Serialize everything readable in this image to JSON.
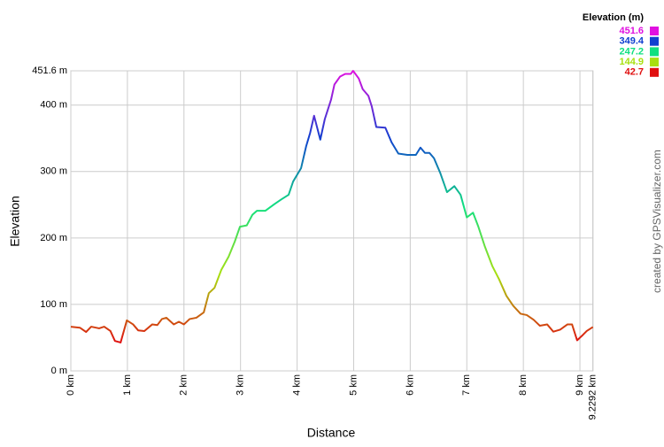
{
  "chart_data": {
    "type": "line",
    "y_label": "Elevation",
    "x_label": "Distance",
    "x": [
      0,
      0.16,
      0.27,
      0.36,
      0.5,
      0.59,
      0.7,
      0.78,
      0.88,
      0.99,
      1.1,
      1.19,
      1.3,
      1.44,
      1.53,
      1.61,
      1.69,
      1.82,
      1.91,
      2.0,
      2.1,
      2.22,
      2.35,
      2.44,
      2.54,
      2.66,
      2.79,
      2.9,
      2.99,
      3.11,
      3.21,
      3.29,
      3.44,
      3.6,
      3.72,
      3.85,
      3.93,
      4.07,
      4.16,
      4.23,
      4.3,
      4.41,
      4.49,
      4.6,
      4.66,
      4.76,
      4.85,
      4.95,
      4.99,
      5.09,
      5.16,
      5.26,
      5.32,
      5.4,
      5.56,
      5.67,
      5.79,
      5.95,
      6.1,
      6.18,
      6.26,
      6.34,
      6.42,
      6.53,
      6.65,
      6.78,
      6.89,
      7.0,
      7.11,
      7.2,
      7.32,
      7.45,
      7.57,
      7.7,
      7.82,
      7.95,
      8.06,
      8.18,
      8.29,
      8.42,
      8.53,
      8.65,
      8.78,
      8.86,
      8.95,
      9.05,
      9.12,
      9.2292
    ],
    "series": [
      {
        "name": "Elevation (m)",
        "values": [
          66.5,
          65,
          58.5,
          66.5,
          64,
          66.5,
          60,
          45,
          42.7,
          76,
          70,
          61,
          60,
          70,
          69,
          78,
          80,
          70,
          74,
          70,
          78,
          80,
          88,
          117,
          125,
          152,
          172,
          195,
          217,
          219,
          235,
          241,
          241,
          251,
          258,
          265,
          285,
          305,
          338,
          358,
          384,
          348,
          379,
          408,
          431,
          443,
          447,
          447,
          451.6,
          440,
          424,
          414,
          398,
          367,
          366,
          344,
          327,
          325,
          325,
          336,
          328,
          328,
          320,
          298,
          269,
          278,
          265,
          231,
          238,
          218,
          187,
          158,
          138,
          113,
          98,
          86,
          84,
          77,
          68,
          70,
          59,
          62,
          70,
          70,
          46,
          54,
          60,
          66
        ]
      }
    ],
    "xlim": [
      0,
      9.2292
    ],
    "ylim": [
      0,
      451.6
    ],
    "xticks": [
      {
        "value": 0,
        "label": "0 km"
      },
      {
        "value": 1,
        "label": "1 km"
      },
      {
        "value": 2,
        "label": "2 km"
      },
      {
        "value": 3,
        "label": "3 km"
      },
      {
        "value": 4,
        "label": "4 km"
      },
      {
        "value": 5,
        "label": "5 km"
      },
      {
        "value": 6,
        "label": "6 km"
      },
      {
        "value": 7,
        "label": "7 km"
      },
      {
        "value": 8,
        "label": "8 km"
      },
      {
        "value": 9,
        "label": "9 km"
      },
      {
        "value": 9.2292,
        "label": "9.2292 km"
      }
    ],
    "yticks": [
      {
        "value": 0,
        "label": "0 m"
      },
      {
        "value": 100,
        "label": "100 m"
      },
      {
        "value": 200,
        "label": "200 m"
      },
      {
        "value": 300,
        "label": "300 m"
      },
      {
        "value": 400,
        "label": "400 m"
      },
      {
        "value": 451.6,
        "label": "451.6 m"
      }
    ],
    "grid": true,
    "color_scale": [
      {
        "value": 451.6,
        "color": "#e010e0"
      },
      {
        "value": 349.4,
        "color": "#1040d0"
      },
      {
        "value": 247.2,
        "color": "#10e080"
      },
      {
        "value": 144.9,
        "color": "#a8e010"
      },
      {
        "value": 42.7,
        "color": "#e01010"
      }
    ]
  },
  "credit": "created by GPSVisualizer.com"
}
